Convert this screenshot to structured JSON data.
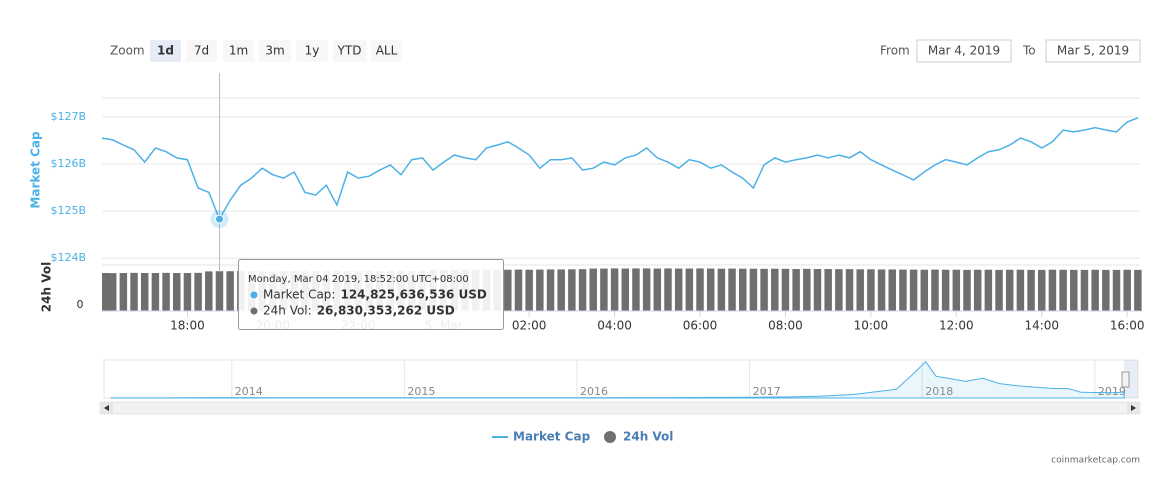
{
  "range_selector": {
    "label": "Zoom",
    "buttons": [
      "1d",
      "7d",
      "1m",
      "3m",
      "1y",
      "YTD",
      "ALL"
    ],
    "selected": "1d"
  },
  "date_range": {
    "from_label": "From",
    "from": "Mar 4, 2019",
    "to_label": "To",
    "to": "Mar 5, 2019"
  },
  "tooltip": {
    "title": "Monday, Mar 04 2019, 18:52:00 UTC+08:00",
    "rows": [
      {
        "label": "Market Cap:",
        "value": "124,825,636,536 USD"
      },
      {
        "label": "24h Vol:",
        "value": "26,830,353,262 USD"
      }
    ]
  },
  "credit": "coinmarketcap.com",
  "chart_data": [
    {
      "type": "line",
      "y_axis_title": "Market Cap",
      "y2_axis_title": "24h Vol",
      "x": [
        16,
        16.25,
        16.5,
        16.75,
        17,
        17.25,
        17.5,
        17.75,
        18,
        18.25,
        18.5,
        18.75,
        19,
        19.25,
        19.5,
        19.75,
        20,
        20.25,
        20.5,
        20.75,
        21,
        21.25,
        21.5,
        21.75,
        22,
        22.25,
        22.5,
        22.75,
        23,
        23.25,
        23.5,
        23.75,
        24,
        24.25,
        24.5,
        24.75,
        25,
        25.25,
        25.5,
        25.75,
        26,
        26.25,
        26.5,
        26.75,
        27,
        27.25,
        27.5,
        27.75,
        28,
        28.25,
        28.5,
        28.75,
        29,
        29.25,
        29.5,
        29.75,
        30,
        30.25,
        30.5,
        30.75,
        31,
        31.25,
        31.5,
        31.75,
        32,
        32.25,
        32.5,
        32.75,
        33,
        33.25,
        33.5,
        33.75,
        34,
        34.25,
        34.5,
        34.75,
        35,
        35.25,
        35.5,
        35.75,
        36,
        36.25,
        36.5,
        36.75,
        37,
        37.25,
        37.5,
        37.75,
        38,
        38.25,
        38.5,
        38.75,
        39,
        39.25,
        39.5,
        39.75,
        40,
        40.25
      ],
      "xlim": [
        16,
        40.3
      ],
      "xticks": [
        {
          "value": 18,
          "label": "18:00"
        },
        {
          "value": 20,
          "label": "20:00"
        },
        {
          "value": 22,
          "label": "22:00"
        },
        {
          "value": 24,
          "label": "5. Mar"
        },
        {
          "value": 26,
          "label": "02:00"
        },
        {
          "value": 28,
          "label": "04:00"
        },
        {
          "value": 30,
          "label": "06:00"
        },
        {
          "value": 32,
          "label": "08:00"
        },
        {
          "value": 34,
          "label": "10:00"
        },
        {
          "value": 36,
          "label": "12:00"
        },
        {
          "value": 38,
          "label": "14:00"
        },
        {
          "value": 40,
          "label": "16:00"
        }
      ],
      "ylim": [
        123.92,
        127.4
      ],
      "yticks": [
        {
          "value": 124,
          "label": "$124B"
        },
        {
          "value": 125,
          "label": "$125B"
        },
        {
          "value": 126,
          "label": "$126B"
        },
        {
          "value": 127,
          "label": "$127B"
        }
      ],
      "y2lim": [
        0,
        31
      ],
      "y2ticks": [
        0
      ],
      "grid": true,
      "series": [
        {
          "name": "Market Cap",
          "color": "#4db1e6",
          "axis": "y",
          "values": [
            126.55,
            126.51,
            126.4,
            126.3,
            126.04,
            126.34,
            126.26,
            126.13,
            126.09,
            125.49,
            125.4,
            124.83,
            125.23,
            125.55,
            125.7,
            125.91,
            125.77,
            125.7,
            125.83,
            125.4,
            125.34,
            125.55,
            125.13,
            125.83,
            125.7,
            125.74,
            125.87,
            125.98,
            125.77,
            126.09,
            126.13,
            125.87,
            126.04,
            126.19,
            126.13,
            126.09,
            126.34,
            126.4,
            126.47,
            126.34,
            126.19,
            125.91,
            126.09,
            126.09,
            126.13,
            125.87,
            125.91,
            126.04,
            125.98,
            126.13,
            126.19,
            126.34,
            126.13,
            126.04,
            125.91,
            126.09,
            126.04,
            125.91,
            125.98,
            125.83,
            125.7,
            125.49,
            125.98,
            126.13,
            126.04,
            126.09,
            126.13,
            126.19,
            126.13,
            126.19,
            126.13,
            126.26,
            126.09,
            125.98,
            125.87,
            125.77,
            125.66,
            125.83,
            125.98,
            126.09,
            126.04,
            125.98,
            126.13,
            126.26,
            126.3,
            126.4,
            126.55,
            126.47,
            126.34,
            126.47,
            126.72,
            126.68,
            126.72,
            126.77,
            126.72,
            126.68,
            126.89,
            126.98
          ]
        },
        {
          "name": "24h Vol",
          "color": "#6f6f6f",
          "axis": "y2",
          "type": "column",
          "values": [
            25.6,
            25.5,
            25.6,
            25.7,
            25.6,
            25.6,
            25.7,
            25.6,
            25.6,
            25.7,
            26.7,
            26.8,
            26.8,
            26.9,
            26.8,
            26.8,
            26.7,
            26.8,
            26.9,
            26.8,
            26.8,
            26.9,
            26.9,
            26.8,
            26.8,
            26.9,
            27.0,
            26.9,
            26.9,
            27.0,
            27.0,
            27.6,
            27.7,
            27.6,
            27.7,
            27.8,
            27.7,
            27.8,
            27.8,
            27.9,
            27.8,
            27.9,
            28.0,
            28.0,
            28.1,
            28.2,
            28.6,
            28.6,
            28.7,
            28.6,
            28.7,
            28.7,
            28.6,
            28.7,
            28.6,
            28.6,
            28.7,
            28.6,
            28.5,
            28.6,
            28.5,
            28.5,
            28.4,
            28.5,
            28.4,
            28.3,
            28.4,
            28.3,
            28.3,
            28.2,
            28.2,
            28.1,
            28.1,
            28.0,
            28.0,
            27.9,
            27.9,
            27.8,
            27.9,
            27.8,
            27.8,
            27.7,
            27.8,
            27.8,
            27.7,
            27.8,
            27.8,
            27.7,
            27.7,
            27.8,
            27.8,
            27.7,
            27.7,
            27.8,
            27.7,
            27.7,
            27.8,
            27.7
          ]
        }
      ]
    },
    {
      "type": "area",
      "color": "#4db1e6",
      "x": [
        2013.3,
        2013.6,
        2013.9,
        2014.0,
        2014.2,
        2014.5,
        2014.8,
        2015.0,
        2015.5,
        2016.0,
        2016.5,
        2017.0,
        2017.25,
        2017.4,
        2017.6,
        2017.75,
        2017.85,
        2017.95,
        2018.02,
        2018.08,
        2018.15,
        2018.25,
        2018.35,
        2018.45,
        2018.55,
        2018.65,
        2018.75,
        2018.85,
        2018.92,
        2019.0,
        2019.1,
        2019.17
      ],
      "values": [
        1.5,
        2,
        10,
        10,
        7,
        8,
        6,
        4,
        4,
        7,
        10,
        17,
        25,
        40,
        80,
        150,
        200,
        560,
        830,
        500,
        450,
        380,
        450,
        330,
        280,
        250,
        220,
        210,
        130,
        125,
        120,
        135
      ],
      "xlim": [
        2013.26,
        2019.25
      ],
      "ylim": [
        0,
        870
      ],
      "xticks": [
        2014,
        2015,
        2016,
        2017,
        2018,
        2019
      ]
    }
  ]
}
